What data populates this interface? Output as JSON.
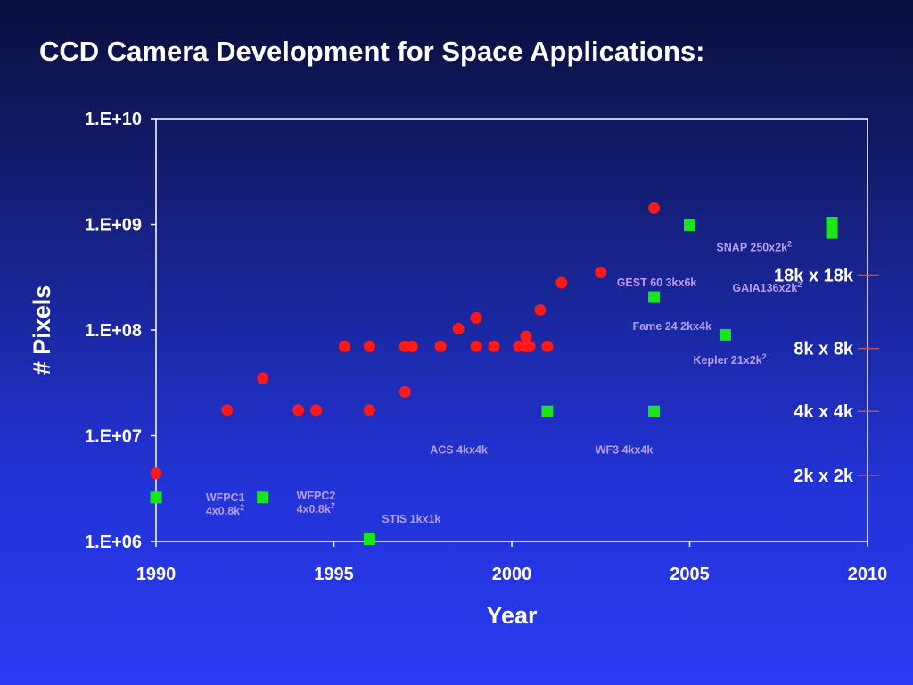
{
  "title": "CCD Camera Development for Space Applications:",
  "chart_data": {
    "type": "scatter",
    "title": "CCD Camera Development for Space Applications:",
    "xlabel": "Year",
    "ylabel": "# Pixels",
    "xlim": [
      1990,
      2010
    ],
    "ylim": [
      1000000,
      10000000000
    ],
    "yscale": "log",
    "x_ticks": [
      "1990",
      "1995",
      "2000",
      "2005",
      "2010"
    ],
    "y_ticks": [
      "1.E+06",
      "1.E+07",
      "1.E+08",
      "1.E+09",
      "1.E+10"
    ],
    "grid": false,
    "colors": {
      "red_points": "#ff1a1a",
      "green_points": "#19e619",
      "annotations": "#b89cf0",
      "reference_ticks": "#c0504d"
    },
    "series": [
      {
        "marker": "circle",
        "color": "#ff1a1a",
        "points": [
          {
            "x": 1990.0,
            "y": 4400000
          },
          {
            "x": 1992.0,
            "y": 17500000
          },
          {
            "x": 1993.0,
            "y": 35000000
          },
          {
            "x": 1994.0,
            "y": 17500000
          },
          {
            "x": 1994.5,
            "y": 17500000
          },
          {
            "x": 1995.3,
            "y": 70000000
          },
          {
            "x": 1996.0,
            "y": 70000000
          },
          {
            "x": 1996.0,
            "y": 17500000
          },
          {
            "x": 1997.0,
            "y": 70000000
          },
          {
            "x": 1997.2,
            "y": 70000000
          },
          {
            "x": 1997.0,
            "y": 26000000
          },
          {
            "x": 1998.0,
            "y": 70000000
          },
          {
            "x": 1998.5,
            "y": 103000000
          },
          {
            "x": 1999.0,
            "y": 70000000
          },
          {
            "x": 1999.0,
            "y": 130000000
          },
          {
            "x": 1999.5,
            "y": 70000000
          },
          {
            "x": 2000.2,
            "y": 70000000
          },
          {
            "x": 2000.4,
            "y": 70000000
          },
          {
            "x": 2000.5,
            "y": 70000000
          },
          {
            "x": 2000.4,
            "y": 87000000
          },
          {
            "x": 2000.8,
            "y": 155000000
          },
          {
            "x": 2001.0,
            "y": 70000000
          },
          {
            "x": 2001.4,
            "y": 280000000
          },
          {
            "x": 2002.5,
            "y": 350000000
          },
          {
            "x": 2004.0,
            "y": 1420000000
          }
        ]
      },
      {
        "marker": "square",
        "color": "#19e619",
        "points": [
          {
            "x": 1990.0,
            "y": 2600000
          },
          {
            "x": 1993.0,
            "y": 2600000
          },
          {
            "x": 1996.0,
            "y": 1050000
          },
          {
            "x": 2001.0,
            "y": 17000000
          },
          {
            "x": 2004.0,
            "y": 17000000
          },
          {
            "x": 2004.0,
            "y": 205000000
          },
          {
            "x": 2005.0,
            "y": 980000000
          },
          {
            "x": 2006.0,
            "y": 90000000
          },
          {
            "x": 2009.0,
            "y": 1040000000
          },
          {
            "x": 2009.0,
            "y": 830000000
          }
        ]
      }
    ],
    "annotations": [
      {
        "lines": [
          "WFPC1",
          "4x0.8k"
        ],
        "sup": "2",
        "x": 1991.4,
        "y": 2400000
      },
      {
        "lines": [
          "WFPC2",
          "4x0.8k"
        ],
        "sup": "2",
        "x": 1993.95,
        "y": 2500000
      },
      {
        "lines": [
          "STIS 1kx1k"
        ],
        "x": 1996.35,
        "y": 1500000
      },
      {
        "lines": [
          "ACS 4kx4k"
        ],
        "x": 1997.7,
        "y": 6800000
      },
      {
        "lines": [
          "WF3 4kx4k"
        ],
        "x": 2002.35,
        "y": 6800000
      },
      {
        "lines": [
          "Fame 24 2kx4k"
        ],
        "x": 2003.4,
        "y": 100000000
      },
      {
        "lines": [
          "Kepler 21x2k"
        ],
        "sup": "2",
        "x": 2005.1,
        "y": 48000000
      },
      {
        "lines": [
          "GEST 60 3kx6k"
        ],
        "x": 2002.95,
        "y": 260000000
      },
      {
        "lines": [
          "GAIA136x2k"
        ],
        "sup": "2",
        "x": 2006.2,
        "y": 230000000
      },
      {
        "lines": [
          "SNAP 250x2k"
        ],
        "sup": "2",
        "x": 2005.75,
        "y": 560000000
      }
    ],
    "reference_lines": [
      {
        "label": "18k x 18k",
        "y": 330000000
      },
      {
        "label": "8k x 8k",
        "y": 67000000
      },
      {
        "label": "4k x 4k",
        "y": 17000000
      },
      {
        "label": "2k x 2k",
        "y": 4200000
      }
    ]
  }
}
